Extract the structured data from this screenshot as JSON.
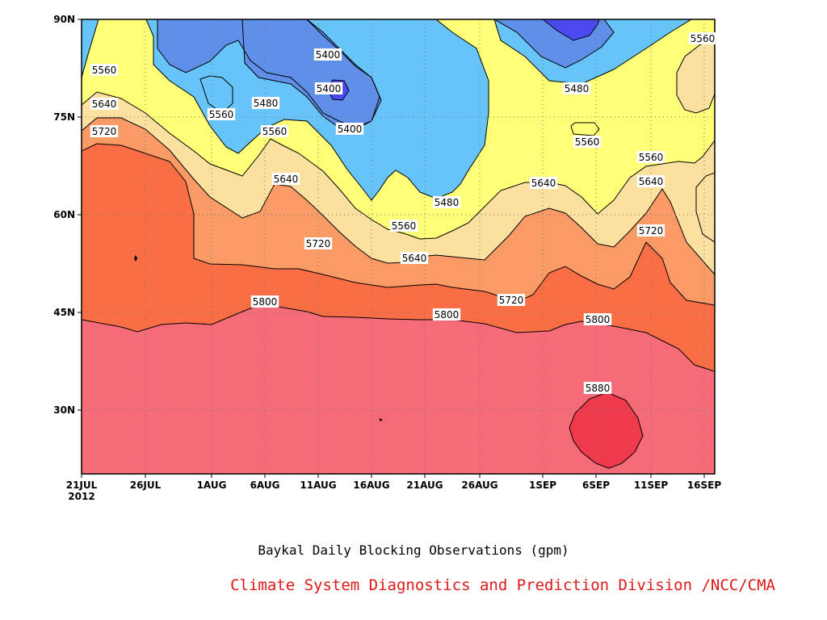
{
  "chart_data": {
    "type": "heatmap",
    "title": "Baykal Daily Blocking Observations (gpm)",
    "credit": "Climate System Diagnostics and Prediction Division /NCC/CMA",
    "x_axis": {
      "type": "date",
      "ticks": [
        "21JUL",
        "26JUL",
        "1AUG",
        "6AUG",
        "11AUG",
        "16AUG",
        "21AUG",
        "26AUG",
        "1SEP",
        "6SEP",
        "11SEP",
        "16SEP"
      ],
      "year_label": "2012",
      "range": [
        "2012-07-21",
        "2012-09-16"
      ]
    },
    "y_axis": {
      "ticks": [
        "30N",
        "45N",
        "60N",
        "75N",
        "90N"
      ],
      "range": [
        20,
        90
      ]
    },
    "grid": true,
    "levels": [
      5400,
      5480,
      5560,
      5640,
      5720,
      5800,
      5880
    ],
    "colors": {
      "below_5400": "#4a4af0",
      "5400_5480": "#5f8fe8",
      "5480_5560": "#66c4f8",
      "5560_5640": "#ffff78",
      "5640_5720": "#fce0a0",
      "5720_5800": "#fa9a64",
      "5800_5880": "#fa6e46",
      "5880_5960": "#f56c78",
      "above_5960": "#ee3a4a"
    },
    "contour_labels": [
      {
        "text": "5560"
      },
      {
        "text": "5640"
      },
      {
        "text": "5720"
      },
      {
        "text": "5400"
      },
      {
        "text": "5480"
      },
      {
        "text": "5560"
      },
      {
        "text": "5400"
      },
      {
        "text": "5400"
      },
      {
        "text": "5640"
      },
      {
        "text": "5720"
      },
      {
        "text": "5800"
      },
      {
        "text": "5560"
      },
      {
        "text": "5640"
      },
      {
        "text": "5480"
      },
      {
        "text": "5800"
      },
      {
        "text": "5720"
      },
      {
        "text": "5560"
      },
      {
        "text": "5640"
      },
      {
        "text": "5480"
      },
      {
        "text": "5560"
      },
      {
        "text": "5560"
      },
      {
        "text": "5800"
      },
      {
        "text": "5640"
      },
      {
        "text": "5720"
      },
      {
        "text": "5880"
      },
      {
        "text": "5560"
      }
    ]
  }
}
